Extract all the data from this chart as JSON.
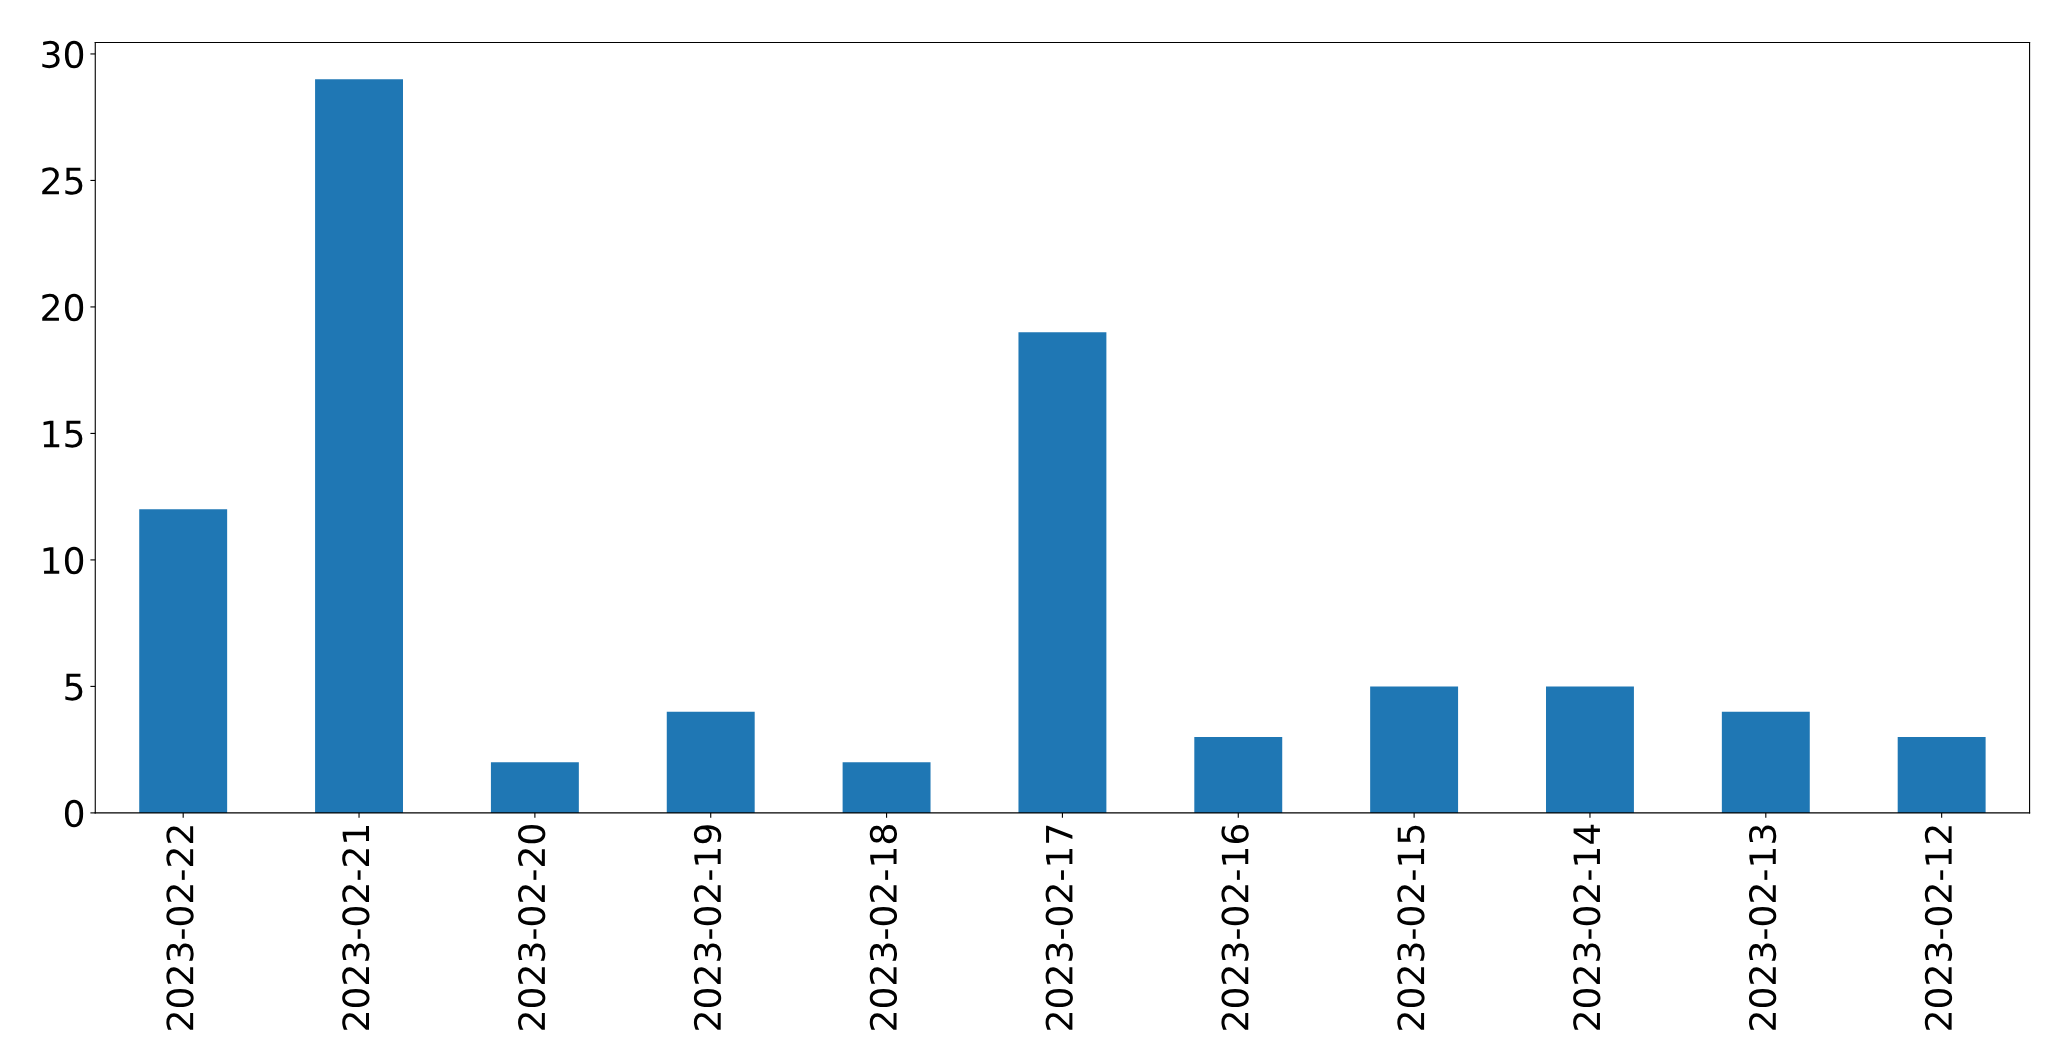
{
  "chart_data": {
    "type": "bar",
    "categories": [
      "2023-02-22",
      "2023-02-21",
      "2023-02-20",
      "2023-02-19",
      "2023-02-18",
      "2023-02-17",
      "2023-02-16",
      "2023-02-15",
      "2023-02-14",
      "2023-02-13",
      "2023-02-12"
    ],
    "values": [
      12,
      29,
      2,
      4,
      2,
      19,
      3,
      5,
      5,
      4,
      3
    ],
    "color": "#1f77b4",
    "ylim": [
      0,
      30.45
    ],
    "yticks": [
      0,
      5,
      10,
      15,
      20,
      25,
      30
    ],
    "grid": false
  }
}
